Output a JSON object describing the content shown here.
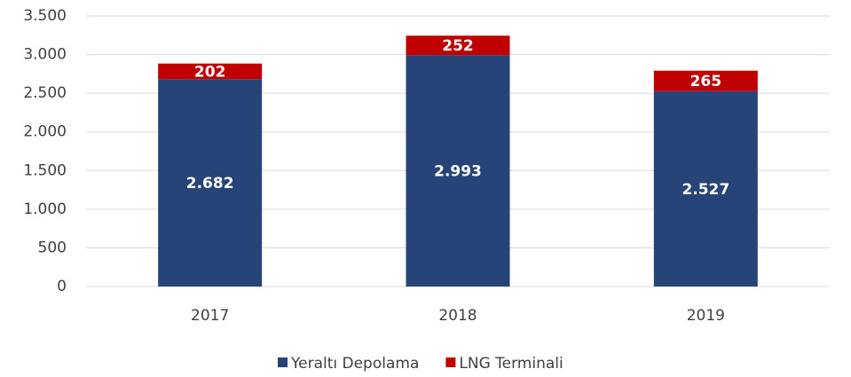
{
  "chart_data": {
    "type": "stacked_bar",
    "categories": [
      "2017",
      "2018",
      "2019"
    ],
    "series": [
      {
        "name": "Yeraltı Depolama",
        "color": "#264478",
        "values": [
          2682,
          2993,
          2527
        ],
        "value_labels": [
          "2.682",
          "2.993",
          "2.527"
        ]
      },
      {
        "name": "LNG Terminali",
        "color": "#c00000",
        "values": [
          202,
          252,
          265
        ]
      }
    ],
    "ylim": [
      0,
      3500
    ],
    "yticks": [
      0,
      500,
      {
        "value": 1000,
        "label": "1.000"
      },
      {
        "value": 1500,
        "label": "1.500"
      },
      {
        "value": 2000,
        "label": "2.000"
      },
      {
        "value": 2500,
        "label": "2.500"
      },
      {
        "value": 3000,
        "label": "3.000"
      },
      {
        "value": 3500,
        "label": "3.500"
      }
    ],
    "grid": true,
    "legend": "bottom"
  }
}
